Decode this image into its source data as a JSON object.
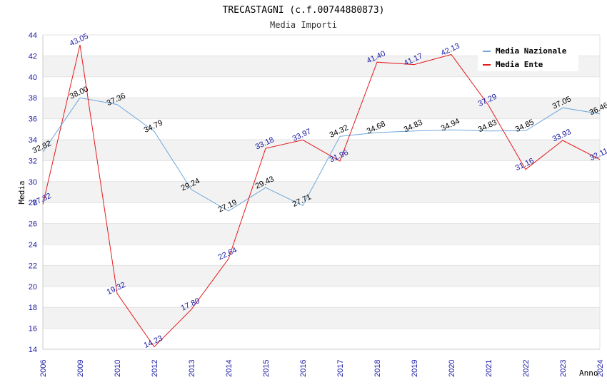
{
  "chart_data": {
    "type": "line",
    "title": "TRECASTAGNI (c.f.00744880873)",
    "subtitle": "Media Importi",
    "xlabel": "Anno",
    "ylabel": "Media",
    "ylim": [
      14,
      44
    ],
    "yticks": [
      14,
      16,
      18,
      20,
      22,
      24,
      26,
      28,
      30,
      32,
      34,
      36,
      38,
      40,
      42,
      44
    ],
    "categories": [
      "2006",
      "2009",
      "2010",
      "2012",
      "2013",
      "2014",
      "2015",
      "2016",
      "2017",
      "2018",
      "2019",
      "2020",
      "2021",
      "2022",
      "2023",
      "2024"
    ],
    "grid": "horizontal alternating bands",
    "legend_position": "top-right",
    "series": [
      {
        "name": "Media Nazionale",
        "color": "#6fa8dc",
        "label_color": "#000000",
        "values": [
          32.82,
          38.0,
          37.36,
          34.79,
          29.24,
          27.19,
          29.43,
          27.71,
          34.32,
          34.68,
          34.83,
          34.94,
          34.83,
          34.85,
          37.05,
          36.46
        ],
        "labels": [
          "32.82",
          "38.00",
          "37.36",
          "34.79",
          "29.24",
          "27.19",
          "29.43",
          "27.71",
          "34.32",
          "34.68",
          "34.83",
          "34.94",
          "34.83",
          "34.85",
          "37.05",
          "36.46"
        ]
      },
      {
        "name": "Media Ente",
        "color": "#e31a1c",
        "label_color": "#1a1aa6",
        "values": [
          27.82,
          43.05,
          19.32,
          14.23,
          17.8,
          22.64,
          33.18,
          33.97,
          31.96,
          41.4,
          41.17,
          42.13,
          37.29,
          31.16,
          33.93,
          32.11
        ],
        "labels": [
          "27.82",
          "43.05",
          "19.32",
          "14.23",
          "17.80",
          "22.64",
          "33.18",
          "33.97",
          "31.96",
          "41.40",
          "41.17",
          "42.13",
          "37.29",
          "31.16",
          "33.93",
          "32.11"
        ]
      }
    ]
  }
}
